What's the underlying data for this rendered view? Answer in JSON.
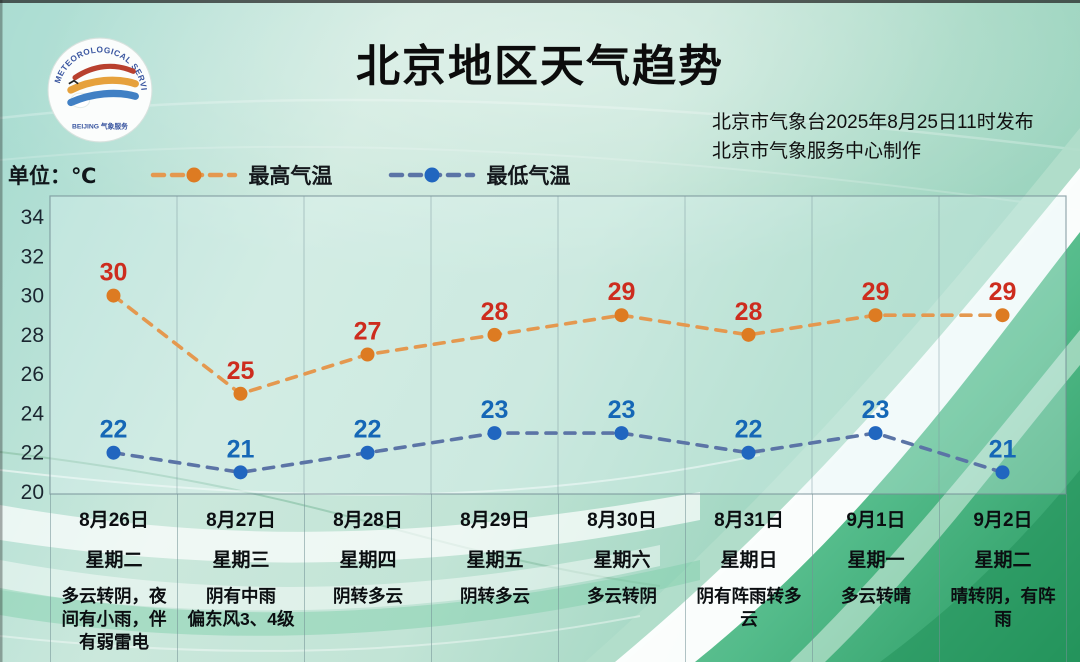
{
  "header": {
    "title": "北京地区天气趋势",
    "issued_line1": "北京市气象台2025年8月25日11时发布",
    "issued_line2": "北京市气象服务中心制作",
    "logo_text_top": "METEOROLOGICAL SERVICE",
    "logo_text_bottom": "BEIJING 气象服务"
  },
  "unit_label": "单位：℃",
  "colors": {
    "high_line": "#e4984f",
    "high_dot": "#dd7b22",
    "high_label": "#cd2c1e",
    "low_line": "#5b74a6",
    "low_dot": "#2166bf",
    "low_label": "#1567b6",
    "grid": "#7e9aa0",
    "tick_text": "#1b2630"
  },
  "legend": [
    {
      "label": "最高气温",
      "series": "high"
    },
    {
      "label": "最低气温",
      "series": "low"
    }
  ],
  "chart_data": {
    "type": "line",
    "title": "北京地区天气趋势",
    "xlabel": "",
    "ylabel": "℃",
    "y_ticks": [
      34,
      32,
      30,
      28,
      26,
      24,
      22,
      20
    ],
    "ylim": [
      20,
      35
    ],
    "grid": "vertical-column-dividers",
    "legend_position": "top-left",
    "categories": [
      {
        "date": "8月26日",
        "weekday": "星期二",
        "weather": "多云转阴，夜间有小雨，伴有弱雷电"
      },
      {
        "date": "8月27日",
        "weekday": "星期三",
        "weather": "阴有中雨\n偏东风3、4级"
      },
      {
        "date": "8月28日",
        "weekday": "星期四",
        "weather": "阴转多云"
      },
      {
        "date": "8月29日",
        "weekday": "星期五",
        "weather": "阴转多云"
      },
      {
        "date": "8月30日",
        "weekday": "星期六",
        "weather": "多云转阴"
      },
      {
        "date": "8月31日",
        "weekday": "星期日",
        "weather": "阴有阵雨转多云"
      },
      {
        "date": "9月1日",
        "weekday": "星期一",
        "weather": "多云转晴"
      },
      {
        "date": "9月2日",
        "weekday": "星期二",
        "weather": "晴转阴，有阵雨"
      }
    ],
    "series": [
      {
        "name": "最高气温",
        "key": "high",
        "values": [
          30,
          25,
          27,
          28,
          29,
          28,
          29,
          29
        ]
      },
      {
        "name": "最低气温",
        "key": "low",
        "values": [
          22,
          21,
          22,
          23,
          23,
          22,
          23,
          21
        ]
      }
    ]
  }
}
